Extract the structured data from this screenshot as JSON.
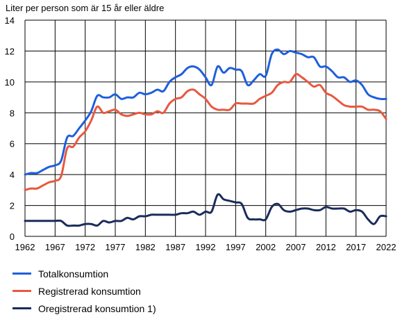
{
  "chart_data": {
    "type": "line",
    "title": "",
    "ylabel": "Liter per person som är 15 år eller äldre",
    "xlabel": "",
    "xlim": [
      1962,
      2022
    ],
    "ylim": [
      0,
      14
    ],
    "xticks": [
      1962,
      1967,
      1972,
      1977,
      1982,
      1987,
      1992,
      1997,
      2002,
      2007,
      2012,
      2017,
      2022
    ],
    "yticks": [
      0,
      2,
      4,
      6,
      8,
      10,
      12,
      14
    ],
    "grid": true,
    "legend_position": "bottom",
    "x": [
      1962,
      1963,
      1964,
      1965,
      1966,
      1967,
      1968,
      1969,
      1970,
      1971,
      1972,
      1973,
      1974,
      1975,
      1976,
      1977,
      1978,
      1979,
      1980,
      1981,
      1982,
      1983,
      1984,
      1985,
      1986,
      1987,
      1988,
      1989,
      1990,
      1991,
      1992,
      1993,
      1994,
      1995,
      1996,
      1997,
      1998,
      1999,
      2000,
      2001,
      2002,
      2003,
      2004,
      2005,
      2006,
      2007,
      2008,
      2009,
      2010,
      2011,
      2012,
      2013,
      2014,
      2015,
      2016,
      2017,
      2018,
      2019,
      2020,
      2021,
      2022
    ],
    "series": [
      {
        "name": "Totalkonsumtion",
        "color": "#1f5fdc",
        "values": [
          4.0,
          4.1,
          4.1,
          4.3,
          4.5,
          4.6,
          4.9,
          6.4,
          6.5,
          7.0,
          7.5,
          8.1,
          9.1,
          9.0,
          9.0,
          9.2,
          8.9,
          9.0,
          9.0,
          9.3,
          9.2,
          9.3,
          9.5,
          9.4,
          10.0,
          10.3,
          10.5,
          10.9,
          11.0,
          10.8,
          10.3,
          9.8,
          11.0,
          10.6,
          10.9,
          10.8,
          10.7,
          9.8,
          10.1,
          10.5,
          10.4,
          11.8,
          12.1,
          11.8,
          12.0,
          11.9,
          11.8,
          11.6,
          11.6,
          11.0,
          11.0,
          10.7,
          10.3,
          10.3,
          10.0,
          10.1,
          9.8,
          9.2,
          9.0,
          8.9,
          8.9
        ]
      },
      {
        "name": "Registrerad konsumtion",
        "color": "#e8583f",
        "values": [
          3.0,
          3.1,
          3.1,
          3.3,
          3.5,
          3.6,
          3.9,
          5.7,
          5.8,
          6.4,
          6.8,
          7.5,
          8.4,
          8.0,
          8.1,
          8.2,
          7.9,
          7.8,
          7.9,
          8.0,
          7.9,
          7.9,
          8.1,
          8.0,
          8.6,
          8.9,
          9.0,
          9.4,
          9.5,
          9.2,
          8.9,
          8.4,
          8.2,
          8.2,
          8.2,
          8.6,
          8.6,
          8.6,
          8.6,
          8.9,
          9.1,
          9.3,
          9.8,
          10.0,
          10.0,
          10.5,
          10.3,
          10.0,
          9.7,
          9.8,
          9.3,
          9.1,
          8.8,
          8.5,
          8.4,
          8.4,
          8.4,
          8.2,
          8.2,
          8.1,
          7.6
        ]
      },
      {
        "name": "Oregistrerad konsumtion 1)",
        "color": "#1a2c5b",
        "values": [
          1.0,
          1.0,
          1.0,
          1.0,
          1.0,
          1.0,
          1.0,
          0.7,
          0.7,
          0.7,
          0.8,
          0.8,
          0.7,
          1.0,
          0.9,
          1.0,
          1.0,
          1.2,
          1.1,
          1.3,
          1.3,
          1.4,
          1.4,
          1.4,
          1.4,
          1.4,
          1.5,
          1.5,
          1.6,
          1.4,
          1.6,
          1.6,
          2.7,
          2.4,
          2.3,
          2.2,
          2.1,
          1.2,
          1.1,
          1.1,
          1.1,
          1.9,
          2.1,
          1.7,
          1.6,
          1.7,
          1.8,
          1.8,
          1.7,
          1.7,
          1.9,
          1.8,
          1.8,
          1.8,
          1.6,
          1.7,
          1.6,
          1.1,
          0.8,
          1.3,
          1.3
        ]
      }
    ]
  }
}
